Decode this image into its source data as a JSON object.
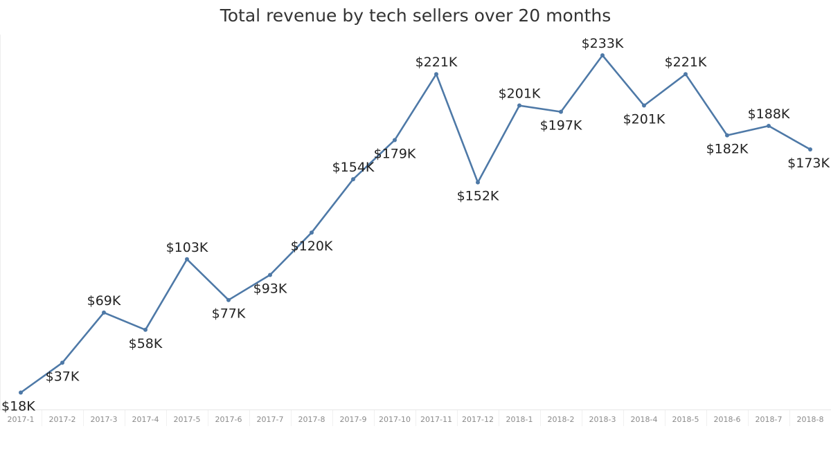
{
  "chart_data": {
    "type": "line",
    "title": "Total revenue by tech sellers over 20 months",
    "xlabel": "",
    "ylabel": "",
    "categories": [
      "2017-1",
      "2017-2",
      "2017-3",
      "2017-4",
      "2017-5",
      "2017-6",
      "2017-7",
      "2017-8",
      "2017-9",
      "2017-10",
      "2017-11",
      "2017-12",
      "2018-1",
      "2018-2",
      "2018-3",
      "2018-4",
      "2018-5",
      "2018-6",
      "2018-7",
      "2018-8"
    ],
    "values": [
      18,
      37,
      69,
      58,
      103,
      77,
      93,
      120,
      154,
      179,
      221,
      152,
      201,
      197,
      233,
      201,
      221,
      182,
      188,
      173
    ],
    "value_labels": [
      "$18K",
      "$37K",
      "$69K",
      "$58K",
      "$103K",
      "$77K",
      "$93K",
      "$120K",
      "$154K",
      "$179K",
      "$221K",
      "$152K",
      "$201K",
      "$197K",
      "$233K",
      "$201K",
      "$221K",
      "$182K",
      "$188K",
      "$173K"
    ],
    "label_positions": [
      "below",
      "below",
      "above",
      "below",
      "above",
      "below",
      "below",
      "below",
      "above",
      "below",
      "above",
      "below",
      "above",
      "below",
      "above",
      "below",
      "above",
      "below",
      "above",
      "below"
    ],
    "value_unit": "thousands of USD",
    "ylim": [
      0,
      240
    ],
    "grid": false,
    "legend": "none",
    "line_color": "#4e79a7",
    "tick_color": "#8a8a8a"
  }
}
